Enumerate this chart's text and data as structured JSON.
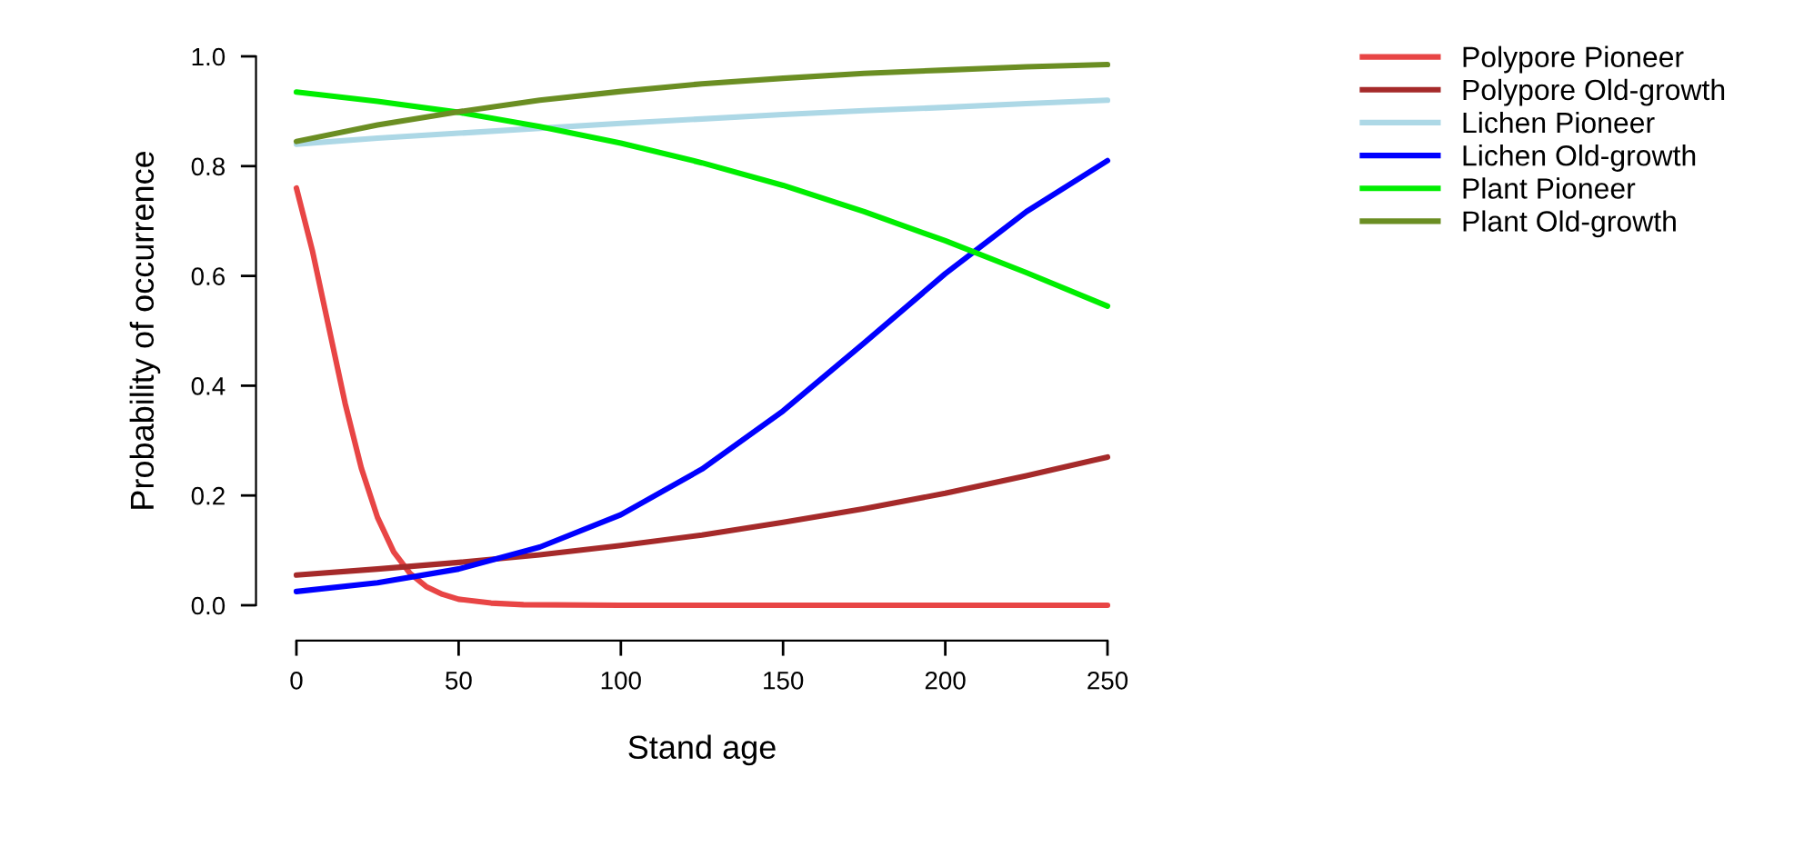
{
  "chart_data": {
    "type": "line",
    "xlabel": "Stand age",
    "ylabel": "Probability of occurrence",
    "xlim": [
      0,
      250
    ],
    "ylim": [
      0,
      1
    ],
    "xticks": [
      0,
      50,
      100,
      150,
      200,
      250
    ],
    "yticks": [
      {
        "value": 0,
        "label": "0.0"
      },
      {
        "value": 0.2,
        "label": "0.2"
      },
      {
        "value": 0.4,
        "label": "0.4"
      },
      {
        "value": 0.6,
        "label": "0.6"
      },
      {
        "value": 0.8,
        "label": "0.8"
      },
      {
        "value": 1,
        "label": "1.0"
      }
    ],
    "legend": "top right",
    "series": [
      {
        "name": "Polypore Pioneer",
        "color": "#e84545",
        "x": [
          0,
          5,
          10,
          15,
          20,
          25,
          30,
          35,
          40,
          45,
          50,
          60,
          70,
          100,
          150,
          200,
          250
        ],
        "values": [
          0.76,
          0.644,
          0.506,
          0.368,
          0.25,
          0.16,
          0.097,
          0.058,
          0.034,
          0.02,
          0.011,
          0.004,
          0.001,
          0,
          0,
          0,
          0
        ]
      },
      {
        "name": "Polypore Old-growth",
        "color": "#a52a2a",
        "x": [
          0,
          25,
          50,
          75,
          100,
          125,
          150,
          175,
          200,
          225,
          250
        ],
        "values": [
          0.055,
          0.066,
          0.078,
          0.092,
          0.109,
          0.128,
          0.151,
          0.176,
          0.204,
          0.236,
          0.27
        ]
      },
      {
        "name": "Lichen Pioneer",
        "color": "#add8e6",
        "x": [
          0,
          25,
          50,
          75,
          100,
          125,
          150,
          175,
          200,
          225,
          250
        ],
        "values": [
          0.84,
          0.851,
          0.86,
          0.869,
          0.878,
          0.886,
          0.894,
          0.901,
          0.907,
          0.914,
          0.92
        ]
      },
      {
        "name": "Lichen Old-growth",
        "color": "#0000ff",
        "x": [
          0,
          25,
          50,
          75,
          100,
          125,
          150,
          175,
          200,
          225,
          250
        ],
        "values": [
          0.025,
          0.041,
          0.066,
          0.106,
          0.165,
          0.248,
          0.354,
          0.478,
          0.604,
          0.717,
          0.81
        ]
      },
      {
        "name": "Plant Pioneer",
        "color": "#00ee00",
        "x": [
          0,
          25,
          50,
          75,
          100,
          125,
          150,
          175,
          200,
          225,
          250
        ],
        "values": [
          0.935,
          0.918,
          0.898,
          0.872,
          0.842,
          0.806,
          0.765,
          0.717,
          0.664,
          0.606,
          0.545
        ]
      },
      {
        "name": "Plant Old-growth",
        "color": "#6b8e23",
        "x": [
          0,
          25,
          50,
          75,
          100,
          125,
          150,
          175,
          200,
          225,
          250
        ],
        "values": [
          0.845,
          0.875,
          0.899,
          0.92,
          0.936,
          0.95,
          0.96,
          0.969,
          0.975,
          0.981,
          0.985
        ]
      }
    ]
  }
}
